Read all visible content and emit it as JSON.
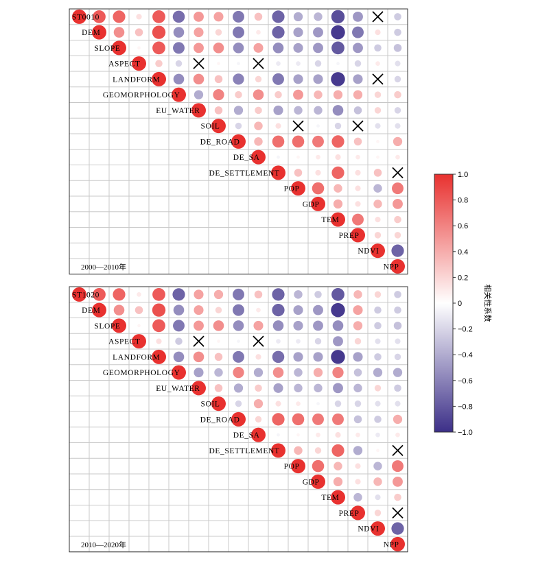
{
  "chart_data": [
    {
      "type": "heatmap",
      "panel_label": "2000—2010年",
      "variables": [
        "ST0010",
        "DEM",
        "SLOPE",
        "ASPECT",
        "LANDFORM",
        "GEOMORPHOLOGY",
        "EU_WATER",
        "SOIL",
        "DE_ROAD",
        "DE_SA",
        "DE_SETTLEMENT",
        "POP",
        "GDP",
        "TEM",
        "PREP",
        "NDVI",
        "NPP"
      ],
      "insignificant_marker": "×",
      "matrix_upper": [
        [
          0.8,
          0.75,
          0.15,
          0.8,
          -0.7,
          0.5,
          0.45,
          -0.65,
          0.3,
          -0.75,
          -0.4,
          -0.35,
          -0.85,
          -0.5,
          "X",
          -0.25
        ],
        [
          0.55,
          0.3,
          0.85,
          -0.55,
          0.45,
          0.2,
          -0.65,
          0.1,
          -0.75,
          -0.45,
          -0.5,
          -0.95,
          -0.65,
          0.15,
          -0.25
        ],
        [
          0.05,
          0.8,
          -0.65,
          0.5,
          0.55,
          -0.55,
          0.45,
          -0.55,
          -0.45,
          -0.5,
          -0.8,
          -0.5,
          -0.25,
          -0.3
        ],
        [
          0.25,
          -0.2,
          "X",
          0.05,
          -0.05,
          "X",
          -0.1,
          -0.1,
          -0.2,
          -0.05,
          -0.2,
          0.1,
          -0.15
        ],
        [
          -0.55,
          0.55,
          0.3,
          -0.6,
          0.2,
          -0.65,
          -0.45,
          -0.45,
          -0.95,
          -0.45,
          "X",
          -0.2
        ],
        [
          -0.4,
          0.6,
          0.25,
          0.55,
          0.25,
          0.5,
          0.35,
          0.4,
          0.4,
          0.2,
          0.25
        ],
        [
          0.3,
          -0.4,
          0.25,
          -0.45,
          -0.35,
          -0.35,
          -0.55,
          -0.3,
          0.2,
          -0.2
        ],
        [
          -0.2,
          0.35,
          0.15,
          "X",
          -0.05,
          -0.2,
          "X",
          -0.15,
          -0.15
        ],
        [
          0.35,
          0.7,
          0.7,
          0.65,
          0.75,
          0.3,
          0.05,
          0.4
        ],
        [
          -0.05,
          0.05,
          0.1,
          0.15,
          0.1,
          0.05,
          0.1
        ],
        [
          0.3,
          0.15,
          0.75,
          0.15,
          0.3,
          "X"
        ],
        [
          0.7,
          0.35,
          0.15,
          -0.35,
          0.65
        ],
        [
          0.4,
          0.15,
          0.35,
          0.5
        ],
        [
          0.65,
          0.15,
          0.25
        ],
        [
          0.2,
          0.2
        ],
        [
          -0.75
        ]
      ]
    },
    {
      "type": "heatmap",
      "panel_label": "2010—2020年",
      "variables": [
        "ST1020",
        "DEM",
        "SLOPE",
        "ASPECT",
        "LANDFORM",
        "GEOMORPHOLOGY",
        "EU_WATER",
        "SOIL",
        "DE_ROAD",
        "DE_SA",
        "DE_SETTLEMENT",
        "POP",
        "GDP",
        "TEM",
        "PREP",
        "NDVI",
        "NPP"
      ],
      "insignificant_marker": "×",
      "matrix_upper": [
        [
          0.8,
          0.75,
          0.1,
          0.8,
          -0.75,
          0.45,
          0.4,
          -0.65,
          0.3,
          -0.75,
          -0.35,
          -0.25,
          -0.8,
          0.35,
          0.2,
          -0.25
        ],
        [
          0.55,
          0.3,
          0.85,
          -0.55,
          0.45,
          0.2,
          -0.65,
          0.1,
          -0.75,
          -0.45,
          -0.5,
          -0.95,
          0.45,
          -0.25,
          -0.25
        ],
        [
          0.05,
          0.8,
          -0.65,
          0.5,
          0.55,
          -0.55,
          0.45,
          -0.55,
          -0.45,
          -0.5,
          -0.55,
          0.4,
          -0.25,
          -0.3
        ],
        [
          0.15,
          -0.25,
          "X",
          0.05,
          -0.05,
          "X",
          -0.1,
          -0.1,
          -0.2,
          -0.5,
          0.2,
          -0.15,
          -0.15
        ],
        [
          -0.55,
          0.55,
          0.3,
          -0.65,
          0.15,
          -0.7,
          -0.45,
          -0.45,
          -0.95,
          -0.45,
          -0.25,
          -0.2
        ],
        [
          -0.45,
          -0.35,
          0.6,
          -0.4,
          0.55,
          -0.35,
          0.4,
          0.6,
          -0.3,
          -0.4,
          -0.4
        ],
        [
          0.3,
          -0.4,
          0.25,
          -0.45,
          -0.35,
          -0.35,
          -0.5,
          -0.35,
          0.2,
          -0.25
        ],
        [
          -0.2,
          0.4,
          0.15,
          0.1,
          -0.05,
          -0.2,
          -0.2,
          -0.15,
          -0.15
        ],
        [
          0.2,
          0.75,
          0.7,
          0.65,
          0.65,
          -0.3,
          -0.25,
          0.4
        ],
        [
          -0.05,
          0.05,
          0.1,
          0.15,
          0.1,
          -0.1,
          0.1
        ],
        [
          0.35,
          0.2,
          0.75,
          -0.4,
          0.05,
          "X"
        ],
        [
          0.7,
          0.35,
          0.15,
          -0.35,
          0.65
        ],
        [
          0.4,
          0.15,
          0.35,
          0.5
        ],
        [
          -0.35,
          -0.15,
          0.25
        ],
        [
          0.2,
          "X"
        ],
        [
          -0.75
        ]
      ]
    }
  ],
  "colorbar": {
    "title": "相关性系数",
    "ticks": [
      "1.0",
      "0.8",
      "0.6",
      "0.4",
      "0.2",
      "0",
      "−0.2",
      "−0.4",
      "−0.6",
      "−0.8",
      "−1.0"
    ],
    "ylim": [
      -1.0,
      1.0
    ],
    "colors": {
      "positive": "#e8312f",
      "neutral": "#ffffff",
      "negative": "#3c2f88"
    }
  },
  "styles": {
    "grid": "#c8c8c8",
    "frame": "#333333",
    "cross": "#000000"
  }
}
